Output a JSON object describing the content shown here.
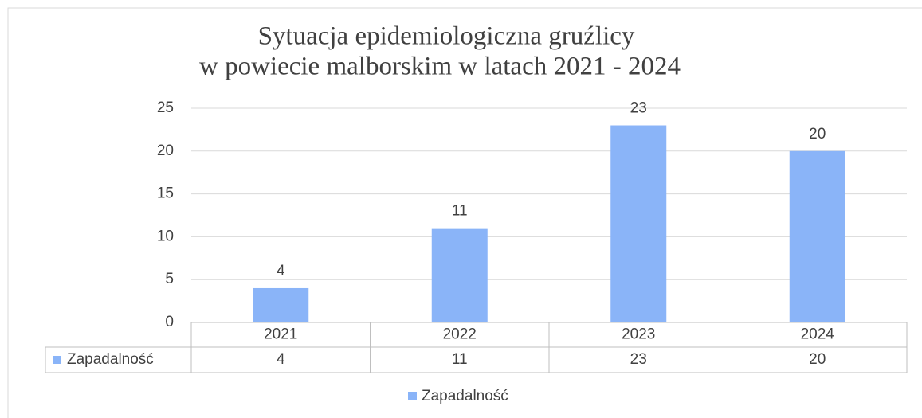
{
  "chart_data": {
    "type": "bar",
    "title": [
      "Sytuacja epidemiologiczna gruźlicy",
      "w powiecie malborskim w latach 2021 - 2024"
    ],
    "categories": [
      "2021",
      "2022",
      "2023",
      "2024"
    ],
    "series": [
      {
        "name": "Zapadalność",
        "color": "#8ab4f8",
        "values": [
          4,
          11,
          23,
          20
        ]
      }
    ],
    "ylim": [
      0,
      25
    ],
    "yticks": [
      0,
      5,
      10,
      15,
      20,
      25
    ],
    "grid": true,
    "legend": "bottom",
    "data_table": true
  }
}
